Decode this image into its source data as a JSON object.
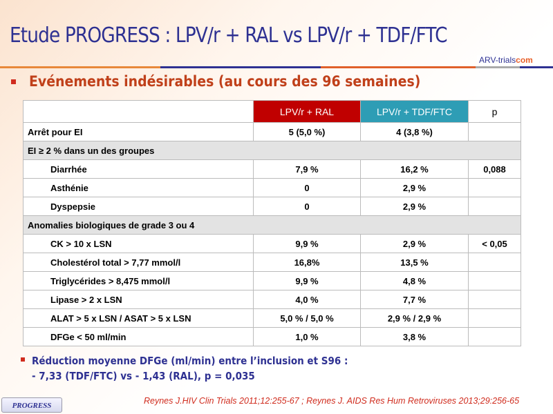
{
  "title": "Etude PROGRESS : LPV/r + RAL vs LPV/r + TDF/FTC",
  "logo": {
    "a": "ARV-trials",
    "b": "com"
  },
  "subtitle": "Evénements indésirables (au cours des 96 semaines)",
  "table": {
    "headers": [
      "",
      "LPV/r + RAL",
      "LPV/r + TDF/FTC",
      "p"
    ],
    "header_colors": {
      "ral": "#c00000",
      "tdf": "#2e9db5",
      "p": "#ffffff"
    },
    "rows": [
      {
        "type": "row",
        "label": "Arrêt pour EI",
        "ral": "5 (5,0 %)",
        "tdf": "4 (3,8 %)",
        "p": ""
      },
      {
        "type": "section",
        "label": "EI ≥ 2 % dans un des groupes"
      },
      {
        "type": "indent",
        "label": "Diarrhée",
        "ral": "7,9 %",
        "tdf": "16,2 %",
        "p": "0,088"
      },
      {
        "type": "indent",
        "label": "Asthénie",
        "ral": "0",
        "tdf": "2,9 %",
        "p": ""
      },
      {
        "type": "indent",
        "label": "Dyspepsie",
        "ral": "0",
        "tdf": "2,9 %",
        "p": ""
      },
      {
        "type": "section",
        "label": "Anomalies biologiques de grade 3 ou 4"
      },
      {
        "type": "indent",
        "label": "CK > 10 x LSN",
        "ral": "9,9 %",
        "tdf": "2,9 %",
        "p": "< 0,05"
      },
      {
        "type": "indent",
        "label": "Cholestérol total > 7,77 mmol/l",
        "ral": "16,8%",
        "tdf": "13,5 %",
        "p": ""
      },
      {
        "type": "indent",
        "label": "Triglycérides > 8,475 mmol/l",
        "ral": "9,9 %",
        "tdf": "4,8 %",
        "p": ""
      },
      {
        "type": "indent",
        "label": "Lipase > 2 x LSN",
        "ral": "4,0 %",
        "tdf": "7,7 %",
        "p": ""
      },
      {
        "type": "indent",
        "label": "ALAT > 5 x LSN / ASAT > 5 x LSN",
        "ral": "5,0 % / 5,0 %",
        "tdf": "2,9 % / 2,9 %",
        "p": ""
      },
      {
        "type": "indent",
        "label": "DFGe < 50 ml/min",
        "ral": "1,0 %",
        "tdf": "3,8 %",
        "p": ""
      }
    ]
  },
  "note": {
    "line1": "Réduction moyenne DFGe (ml/min) entre l’inclusion et S96 :",
    "line2": "- 7,33 (TDF/FTC) vs - 1,43 (RAL), p = 0,035"
  },
  "badge": "PROGRESS",
  "reference": "Reynes J.HIV Clin Trials 2011;12:255-67 ; Reynes J. AIDS Res Hum Retroviruses 2013;29:256-65"
}
